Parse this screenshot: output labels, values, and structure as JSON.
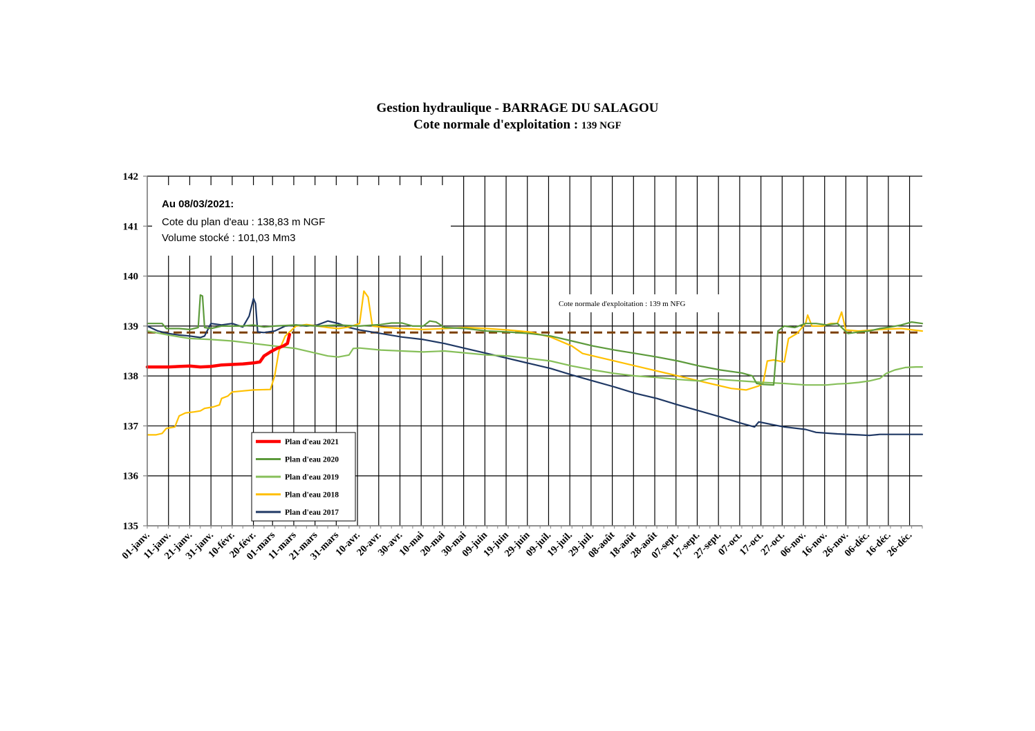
{
  "title": {
    "line1": "Gestion hydraulique - BARRAGE DU SALAGOU",
    "line2_main": "Cote normale d'exploitation : ",
    "line2_unit": "139 NGF"
  },
  "info_box": {
    "title": "Au 08/03/2021:",
    "line1": "Cote du plan d'eau : 138,83 m NGF",
    "line2": "Volume stocké : 101,03 Mm3"
  },
  "chart_data": {
    "type": "line",
    "ylim": [
      135,
      142
    ],
    "y_ticks": [
      135,
      136,
      137,
      138,
      139,
      140,
      141,
      142
    ],
    "x_domain_days": [
      0,
      365
    ],
    "x_ticks": [
      {
        "day": 0,
        "label": "01-janv."
      },
      {
        "day": 10,
        "label": "11-janv."
      },
      {
        "day": 20,
        "label": "21-janv."
      },
      {
        "day": 30,
        "label": "31-janv."
      },
      {
        "day": 40,
        "label": "10-févr."
      },
      {
        "day": 50,
        "label": "20-févr."
      },
      {
        "day": 59,
        "label": "01-mars"
      },
      {
        "day": 69,
        "label": "11-mars"
      },
      {
        "day": 79,
        "label": "21-mars"
      },
      {
        "day": 89,
        "label": "31-mars"
      },
      {
        "day": 99,
        "label": "10-avr."
      },
      {
        "day": 109,
        "label": "20-avr."
      },
      {
        "day": 119,
        "label": "30-avr."
      },
      {
        "day": 129,
        "label": "10-mai"
      },
      {
        "day": 139,
        "label": "20-mai"
      },
      {
        "day": 149,
        "label": "30-mai"
      },
      {
        "day": 159,
        "label": "09-juin"
      },
      {
        "day": 169,
        "label": "19-juin"
      },
      {
        "day": 179,
        "label": "29-juin"
      },
      {
        "day": 189,
        "label": "09-juil."
      },
      {
        "day": 199,
        "label": "19-juil."
      },
      {
        "day": 209,
        "label": "29-juil."
      },
      {
        "day": 219,
        "label": "08-août"
      },
      {
        "day": 229,
        "label": "18-août"
      },
      {
        "day": 239,
        "label": "28-août"
      },
      {
        "day": 249,
        "label": "07-sept."
      },
      {
        "day": 259,
        "label": "17-sept."
      },
      {
        "day": 269,
        "label": "27-sept."
      },
      {
        "day": 279,
        "label": "07-oct."
      },
      {
        "day": 289,
        "label": "17-oct."
      },
      {
        "day": 299,
        "label": "27-oct."
      },
      {
        "day": 309,
        "label": "06-nov."
      },
      {
        "day": 319,
        "label": "16-nov."
      },
      {
        "day": 329,
        "label": "26-nov."
      },
      {
        "day": 339,
        "label": "06-déc."
      },
      {
        "day": 349,
        "label": "16-déc."
      },
      {
        "day": 359,
        "label": "26-déc."
      }
    ],
    "reference_line": {
      "value": 138.87,
      "label": "Cote normale d'exploitation : 139 m NFG",
      "color": "#7b3f00"
    },
    "series": [
      {
        "name": "Plan d'eau 2021",
        "color": "#ff0000",
        "width": 4.5,
        "points": [
          [
            0,
            138.18
          ],
          [
            10,
            138.18
          ],
          [
            15,
            138.19
          ],
          [
            20,
            138.2
          ],
          [
            25,
            138.18
          ],
          [
            30,
            138.19
          ],
          [
            35,
            138.22
          ],
          [
            40,
            138.23
          ],
          [
            45,
            138.24
          ],
          [
            50,
            138.26
          ],
          [
            53,
            138.28
          ],
          [
            55,
            138.4
          ],
          [
            58,
            138.48
          ],
          [
            61,
            138.55
          ],
          [
            64,
            138.6
          ],
          [
            66,
            138.65
          ],
          [
            67,
            138.83
          ]
        ]
      },
      {
        "name": "Plan d'eau 2020",
        "color": "#5c9a3b",
        "width": 2.2,
        "points": [
          [
            0,
            139.05
          ],
          [
            7,
            139.05
          ],
          [
            9,
            138.95
          ],
          [
            15,
            138.95
          ],
          [
            20,
            138.93
          ],
          [
            24,
            138.97
          ],
          [
            25,
            139.62
          ],
          [
            26,
            139.6
          ],
          [
            27,
            138.97
          ],
          [
            30,
            138.95
          ],
          [
            35,
            139.0
          ],
          [
            45,
            139.0
          ],
          [
            50,
            139.02
          ],
          [
            55,
            138.98
          ],
          [
            60,
            139.0
          ],
          [
            70,
            139.02
          ],
          [
            80,
            139.0
          ],
          [
            90,
            139.02
          ],
          [
            100,
            139.0
          ],
          [
            110,
            139.03
          ],
          [
            115,
            139.06
          ],
          [
            120,
            139.06
          ],
          [
            125,
            139.0
          ],
          [
            130,
            139.0
          ],
          [
            133,
            139.1
          ],
          [
            136,
            139.08
          ],
          [
            140,
            138.97
          ],
          [
            150,
            138.95
          ],
          [
            160,
            138.9
          ],
          [
            170,
            138.88
          ],
          [
            180,
            138.85
          ],
          [
            190,
            138.8
          ],
          [
            200,
            138.7
          ],
          [
            210,
            138.6
          ],
          [
            220,
            138.52
          ],
          [
            230,
            138.45
          ],
          [
            240,
            138.38
          ],
          [
            250,
            138.3
          ],
          [
            260,
            138.2
          ],
          [
            270,
            138.12
          ],
          [
            280,
            138.06
          ],
          [
            285,
            138.0
          ],
          [
            287,
            137.85
          ],
          [
            290,
            137.83
          ],
          [
            295,
            137.82
          ],
          [
            297,
            138.9
          ],
          [
            300,
            139.0
          ],
          [
            305,
            138.97
          ],
          [
            310,
            139.05
          ],
          [
            315,
            139.05
          ],
          [
            320,
            139.02
          ],
          [
            325,
            139.05
          ],
          [
            330,
            138.85
          ],
          [
            335,
            138.88
          ],
          [
            340,
            138.9
          ],
          [
            345,
            138.95
          ],
          [
            350,
            138.98
          ],
          [
            355,
            139.02
          ],
          [
            360,
            139.08
          ],
          [
            365,
            139.05
          ]
        ]
      },
      {
        "name": "Plan d'eau 2019",
        "color": "#86bf59",
        "width": 2.2,
        "points": [
          [
            0,
            138.9
          ],
          [
            10,
            138.82
          ],
          [
            20,
            138.75
          ],
          [
            30,
            138.73
          ],
          [
            40,
            138.7
          ],
          [
            50,
            138.65
          ],
          [
            60,
            138.6
          ],
          [
            70,
            138.55
          ],
          [
            80,
            138.45
          ],
          [
            85,
            138.4
          ],
          [
            90,
            138.38
          ],
          [
            95,
            138.42
          ],
          [
            97,
            138.55
          ],
          [
            100,
            138.56
          ],
          [
            110,
            138.52
          ],
          [
            120,
            138.5
          ],
          [
            130,
            138.48
          ],
          [
            140,
            138.5
          ],
          [
            150,
            138.46
          ],
          [
            160,
            138.42
          ],
          [
            170,
            138.4
          ],
          [
            180,
            138.35
          ],
          [
            190,
            138.3
          ],
          [
            200,
            138.2
          ],
          [
            210,
            138.12
          ],
          [
            220,
            138.05
          ],
          [
            230,
            138.0
          ],
          [
            240,
            137.97
          ],
          [
            250,
            137.93
          ],
          [
            260,
            137.9
          ],
          [
            265,
            137.95
          ],
          [
            270,
            137.93
          ],
          [
            280,
            137.9
          ],
          [
            290,
            137.87
          ],
          [
            300,
            137.85
          ],
          [
            310,
            137.82
          ],
          [
            320,
            137.82
          ],
          [
            325,
            137.84
          ],
          [
            330,
            137.85
          ],
          [
            335,
            137.87
          ],
          [
            340,
            137.9
          ],
          [
            345,
            137.95
          ],
          [
            348,
            138.05
          ],
          [
            352,
            138.12
          ],
          [
            357,
            138.17
          ],
          [
            362,
            138.18
          ],
          [
            365,
            138.18
          ]
        ]
      },
      {
        "name": "Plan d'eau 2018",
        "color": "#ffc000",
        "width": 2.2,
        "points": [
          [
            0,
            136.82
          ],
          [
            4,
            136.82
          ],
          [
            7,
            136.85
          ],
          [
            9,
            136.95
          ],
          [
            13,
            136.98
          ],
          [
            15,
            137.2
          ],
          [
            18,
            137.26
          ],
          [
            22,
            137.28
          ],
          [
            25,
            137.3
          ],
          [
            27,
            137.35
          ],
          [
            31,
            137.38
          ],
          [
            34,
            137.42
          ],
          [
            35,
            137.55
          ],
          [
            38,
            137.6
          ],
          [
            40,
            137.68
          ],
          [
            45,
            137.7
          ],
          [
            50,
            137.72
          ],
          [
            58,
            137.73
          ],
          [
            60,
            138.0
          ],
          [
            62,
            138.5
          ],
          [
            65,
            138.8
          ],
          [
            70,
            139.0
          ],
          [
            75,
            139.03
          ],
          [
            80,
            139.0
          ],
          [
            85,
            138.97
          ],
          [
            90,
            138.95
          ],
          [
            95,
            138.98
          ],
          [
            100,
            139.05
          ],
          [
            102,
            139.7
          ],
          [
            104,
            139.58
          ],
          [
            106,
            139.0
          ],
          [
            110,
            138.98
          ],
          [
            120,
            138.95
          ],
          [
            130,
            138.93
          ],
          [
            140,
            138.95
          ],
          [
            150,
            138.97
          ],
          [
            160,
            138.95
          ],
          [
            170,
            138.92
          ],
          [
            180,
            138.88
          ],
          [
            190,
            138.78
          ],
          [
            200,
            138.6
          ],
          [
            205,
            138.45
          ],
          [
            215,
            138.35
          ],
          [
            225,
            138.25
          ],
          [
            235,
            138.15
          ],
          [
            245,
            138.05
          ],
          [
            255,
            137.95
          ],
          [
            265,
            137.85
          ],
          [
            275,
            137.75
          ],
          [
            282,
            137.72
          ],
          [
            288,
            137.8
          ],
          [
            290,
            137.85
          ],
          [
            292,
            138.3
          ],
          [
            295,
            138.32
          ],
          [
            300,
            138.28
          ],
          [
            302,
            138.75
          ],
          [
            306,
            138.85
          ],
          [
            310,
            139.05
          ],
          [
            311,
            139.22
          ],
          [
            313,
            139.0
          ],
          [
            318,
            139.0
          ],
          [
            322,
            139.05
          ],
          [
            325,
            139.05
          ],
          [
            327,
            139.28
          ],
          [
            329,
            138.92
          ],
          [
            335,
            138.9
          ],
          [
            345,
            138.93
          ],
          [
            355,
            138.95
          ],
          [
            365,
            138.9
          ]
        ]
      },
      {
        "name": "Plan d'eau 2017",
        "color": "#1f3864",
        "width": 2.2,
        "points": [
          [
            0,
            139.0
          ],
          [
            5,
            138.9
          ],
          [
            10,
            138.85
          ],
          [
            15,
            138.82
          ],
          [
            20,
            138.8
          ],
          [
            25,
            138.77
          ],
          [
            27,
            138.8
          ],
          [
            30,
            139.05
          ],
          [
            35,
            139.02
          ],
          [
            40,
            139.05
          ],
          [
            45,
            138.98
          ],
          [
            48,
            139.2
          ],
          [
            50,
            139.55
          ],
          [
            51,
            139.45
          ],
          [
            52,
            138.88
          ],
          [
            55,
            138.87
          ],
          [
            60,
            138.9
          ],
          [
            65,
            139.0
          ],
          [
            70,
            139.02
          ],
          [
            75,
            139.0
          ],
          [
            80,
            139.02
          ],
          [
            85,
            139.1
          ],
          [
            90,
            139.05
          ],
          [
            95,
            138.97
          ],
          [
            100,
            138.92
          ],
          [
            110,
            138.85
          ],
          [
            120,
            138.78
          ],
          [
            130,
            138.73
          ],
          [
            140,
            138.65
          ],
          [
            150,
            138.55
          ],
          [
            160,
            138.45
          ],
          [
            170,
            138.35
          ],
          [
            180,
            138.25
          ],
          [
            190,
            138.15
          ],
          [
            200,
            138.02
          ],
          [
            210,
            137.9
          ],
          [
            220,
            137.78
          ],
          [
            230,
            137.65
          ],
          [
            240,
            137.55
          ],
          [
            250,
            137.42
          ],
          [
            260,
            137.3
          ],
          [
            270,
            137.18
          ],
          [
            280,
            137.05
          ],
          [
            286,
            136.98
          ],
          [
            288,
            137.08
          ],
          [
            295,
            137.02
          ],
          [
            300,
            136.98
          ],
          [
            310,
            136.93
          ],
          [
            315,
            136.87
          ],
          [
            325,
            136.84
          ],
          [
            335,
            136.82
          ],
          [
            340,
            136.81
          ],
          [
            345,
            136.83
          ],
          [
            355,
            136.83
          ],
          [
            365,
            136.83
          ]
        ]
      }
    ]
  }
}
